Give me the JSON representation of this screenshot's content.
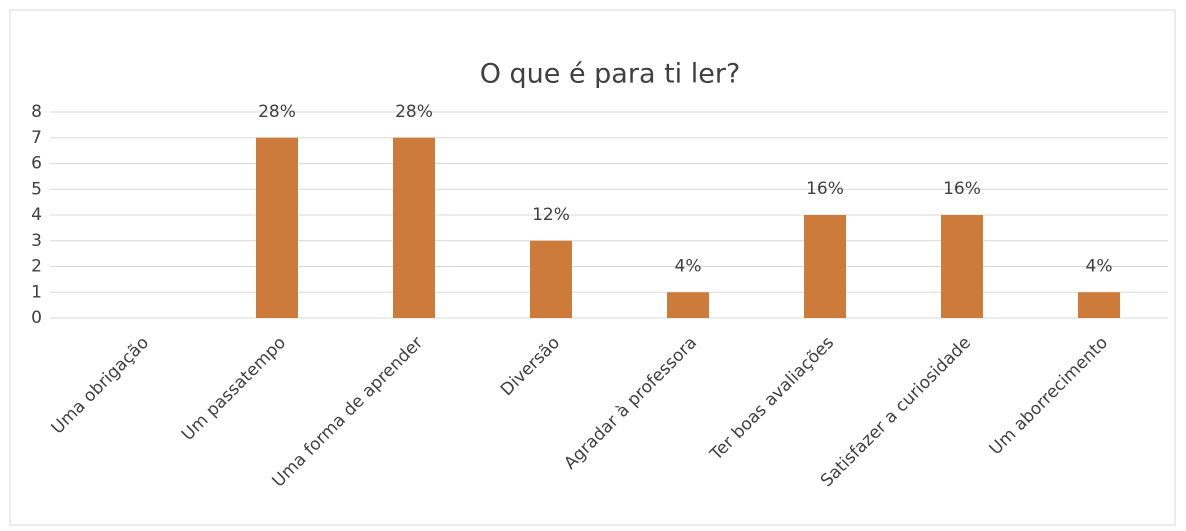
{
  "chart_data": {
    "type": "bar",
    "title": "O que é para ti ler?",
    "categories": [
      "Uma obrigação",
      "Um passatempo",
      "Uma forma de aprender",
      "Diversão",
      "Agradar à professora",
      "Ter boas avaliações",
      "Satisfazer a curiosidade",
      "Um aborrecimento"
    ],
    "values": [
      0,
      7,
      7,
      3,
      1,
      4,
      4,
      1
    ],
    "data_labels": [
      null,
      "28%",
      "28%",
      "12%",
      "4%",
      "16%",
      "16%",
      "4%"
    ],
    "color": "#cd7b3a",
    "ylim": [
      0,
      8
    ],
    "yticks": [
      0,
      1,
      2,
      3,
      4,
      5,
      6,
      7,
      8
    ],
    "grid": true
  }
}
